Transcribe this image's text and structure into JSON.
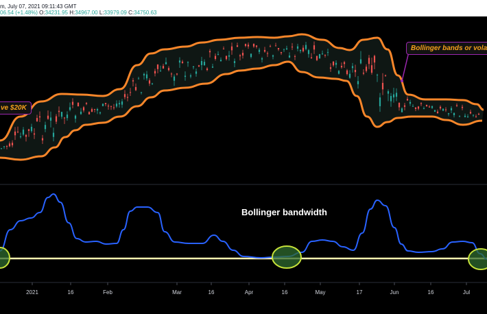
{
  "header": {
    "title_fragment": "m, July 07, 2021 09:11:43 GMT",
    "change_fragment": "06.54 (+1.48%)",
    "ohlc": [
      {
        "label": "O:",
        "value": "34231.95"
      },
      {
        "label": "H:",
        "value": "34967.00"
      },
      {
        "label": "L:",
        "value": "33979.09"
      },
      {
        "label": "C:",
        "value": "34750.63"
      }
    ]
  },
  "annotations": {
    "left": "ve $20K",
    "right": "Bollinger bands or vola"
  },
  "bandwidth_panel": {
    "title": "Bollinger bandwidth"
  },
  "xaxis": {
    "labels": [
      "2021",
      "16",
      "Feb",
      "Mar",
      "16",
      "Apr",
      "16",
      "May",
      "17",
      "Jun",
      "16",
      "Jul"
    ]
  },
  "colors": {
    "background": "#000000",
    "band": "#f7862a",
    "up_candle": "#26a69a",
    "down_candle": "#ef5350",
    "bandwidth_line": "#2962ff",
    "baseline": "#fff3b0",
    "highlight_ellipse": "#c6e23a",
    "annotation_border": "#9c27b0",
    "annotation_text": "#f7a21b"
  },
  "icons": {
    "annotation-pointer": "line-arrow"
  }
}
